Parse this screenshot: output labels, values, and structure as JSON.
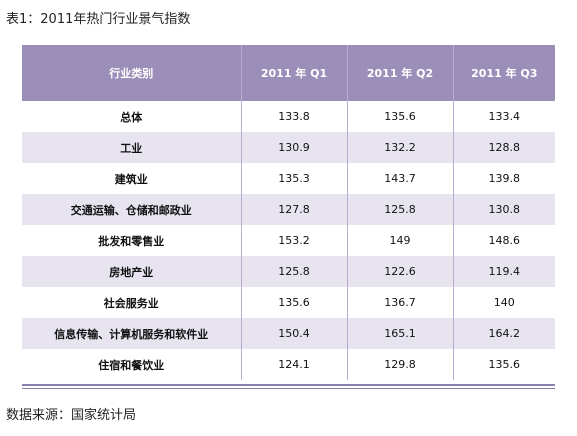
{
  "caption": "表1：2011年热门行业景气指数",
  "source": "数据来源：国家统计局",
  "table": {
    "headers": [
      "行业类别",
      "2011 年 Q1",
      "2011 年 Q2",
      "2011 年 Q3"
    ],
    "rows": [
      [
        "总体",
        "133.8",
        "135.6",
        "133.4"
      ],
      [
        "工业",
        "130.9",
        "132.2",
        "128.8"
      ],
      [
        "建筑业",
        "135.3",
        "143.7",
        "139.8"
      ],
      [
        "交通运输、仓储和邮政业",
        "127.8",
        "125.8",
        "130.8"
      ],
      [
        "批发和零售业",
        "153.2",
        "149",
        "148.6"
      ],
      [
        "房地产业",
        "125.8",
        "122.6",
        "119.4"
      ],
      [
        "社会服务业",
        "135.6",
        "136.7",
        "140"
      ],
      [
        "信息传输、计算机服务和软件业",
        "150.4",
        "165.1",
        "164.2"
      ],
      [
        "住宿和餐饮业",
        "124.1",
        "129.8",
        "135.6"
      ]
    ]
  },
  "colors": {
    "header_bg": "#9b8fb9",
    "band_bg": "#e7e4f0",
    "rule": "#8a7fae"
  }
}
